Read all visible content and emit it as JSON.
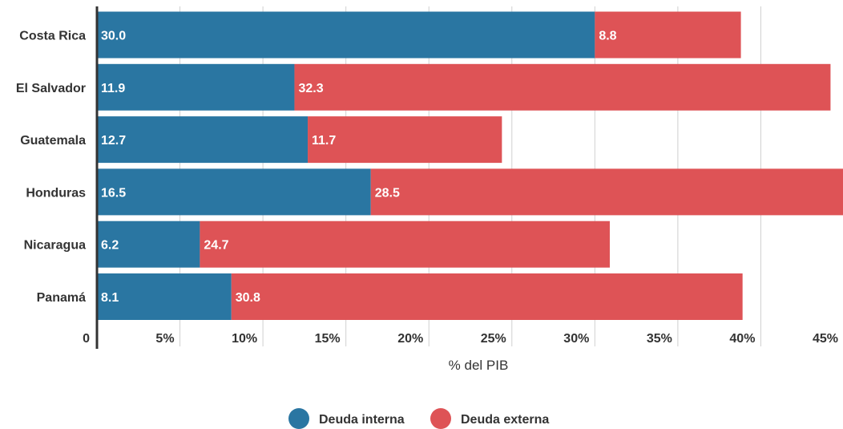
{
  "chart_data": {
    "type": "bar",
    "orientation": "horizontal",
    "stacked": true,
    "categories": [
      "Costa Rica",
      "El Salvador",
      "Guatemala",
      "Honduras",
      "Nicaragua",
      "Panamá"
    ],
    "series": [
      {
        "name": "Deuda interna",
        "color": "#2a76a2",
        "values": [
          30.0,
          11.9,
          12.7,
          16.5,
          6.2,
          8.1
        ],
        "labels": [
          "30.0",
          "11.9",
          "12.7",
          "16.5",
          "6.2",
          "8.1"
        ]
      },
      {
        "name": "Deuda externa",
        "color": "#de5356",
        "values": [
          8.8,
          32.3,
          11.7,
          28.5,
          24.7,
          30.8
        ],
        "labels": [
          "8.8",
          "32.3",
          "11.7",
          "28.5",
          "24.7",
          "30.8"
        ]
      }
    ],
    "xlabel": "% del PIB",
    "ylabel": "",
    "xlim": [
      0,
      45
    ],
    "xticks": [
      0,
      5,
      10,
      15,
      20,
      25,
      30,
      35,
      40,
      45
    ],
    "xtick_labels": [
      "0",
      "5%",
      "10%",
      "15%",
      "20%",
      "25%",
      "30%",
      "35%",
      "40%",
      "45%"
    ],
    "grid": true,
    "legend_position": "bottom-center"
  }
}
